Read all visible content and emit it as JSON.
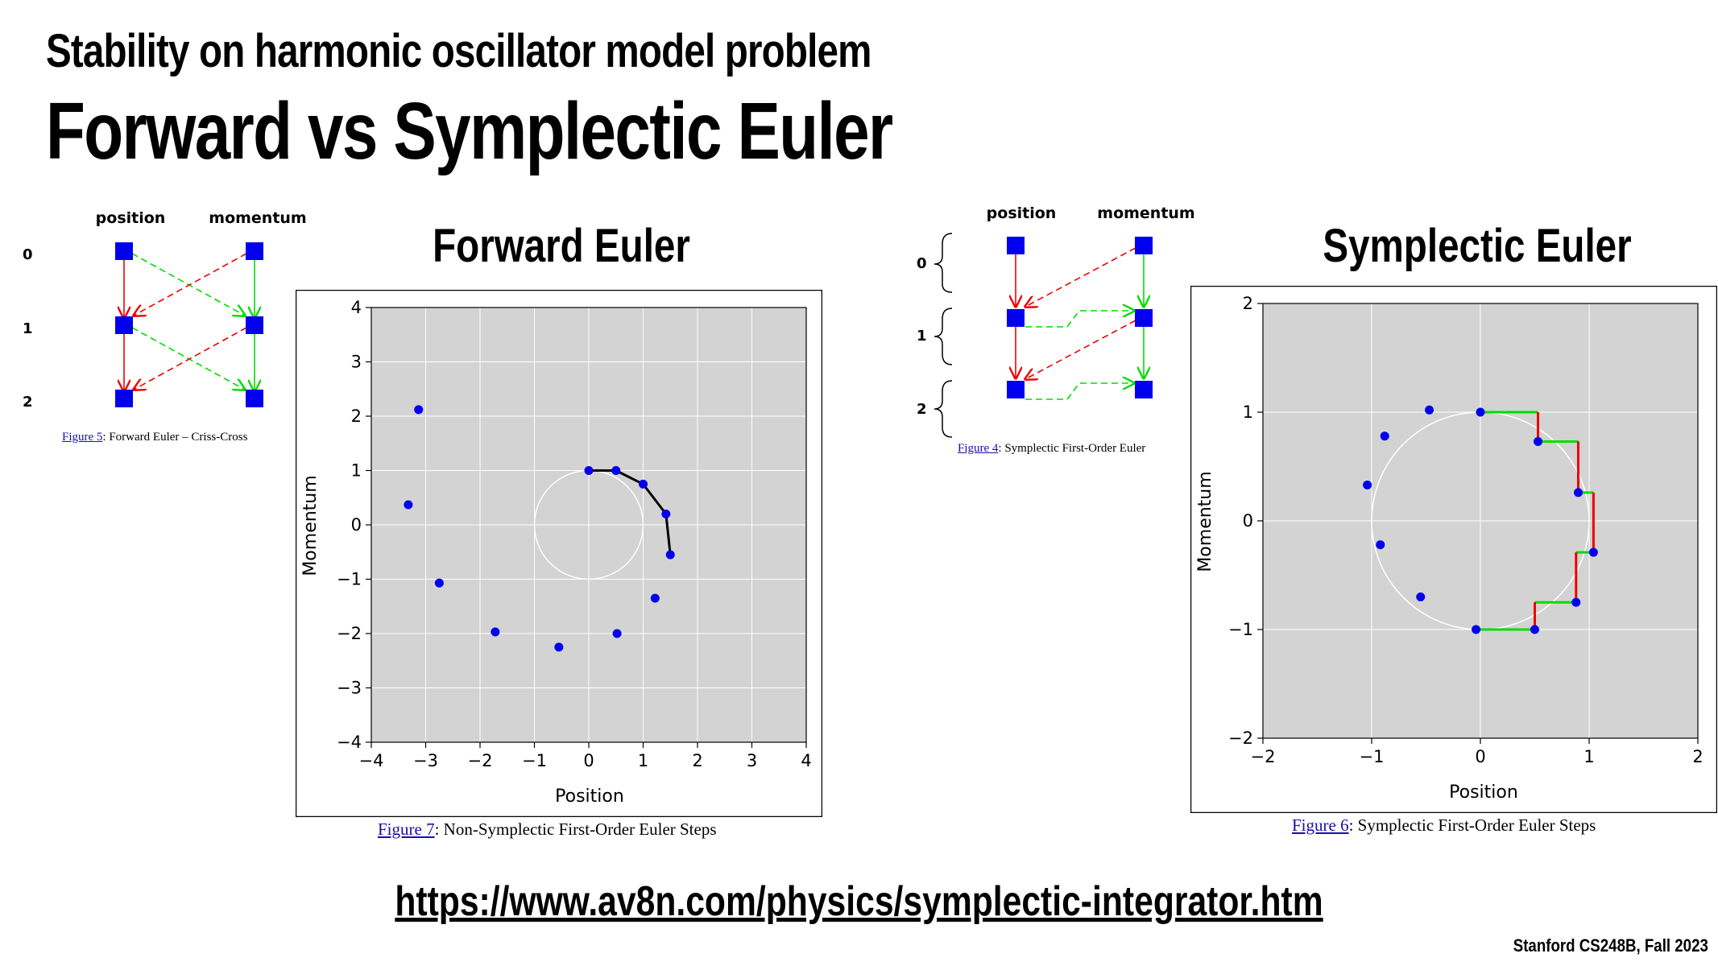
{
  "slide": {
    "subtitle": "Stability on harmonic oscillator model problem",
    "title": "Forward vs Symplectic Euler",
    "url": "https://www.av8n.com/physics/symplectic-integrator.htm",
    "footer": "Stanford CS248B, Fall 2023"
  },
  "colors": {
    "point": "#0000ee",
    "background": "#d3d3d3",
    "grid": "#ffffff",
    "circle": "#ffffff",
    "path": "#000000",
    "position_step": "#ee0000",
    "momentum_step": "#00dd00",
    "link": "#1a0dab"
  },
  "diagrams": [
    {
      "position_label": "position",
      "momentum_label": "momentum",
      "step_labels": [
        "0",
        "1",
        "2"
      ],
      "caption_link": "Figure 5",
      "caption_text": ": Forward Euler – Criss-Cross"
    },
    {
      "position_label": "position",
      "momentum_label": "momentum",
      "step_labels": [
        "0",
        "1",
        "2"
      ],
      "caption_link": "Figure 4",
      "caption_text": ": Symplectic First-Order Euler"
    }
  ],
  "chart_data": [
    {
      "type": "scatter",
      "title": "Forward Euler",
      "xlabel": "Position",
      "ylabel": "Momentum",
      "xlim": [
        -4,
        4
      ],
      "ylim": [
        -4,
        4
      ],
      "xticks": [
        "−4",
        "−3",
        "−2",
        "−1",
        "0",
        "1",
        "2",
        "3",
        "4"
      ],
      "yticks": [
        "4",
        "3",
        "2",
        "1",
        "0",
        "−1",
        "−2",
        "−3",
        "−4"
      ],
      "grid": true,
      "reference_circle_radius": 1,
      "points": [
        {
          "x": 0,
          "y": 1
        },
        {
          "x": 0.5,
          "y": 1
        },
        {
          "x": 1.0,
          "y": 0.75
        },
        {
          "x": 1.42,
          "y": 0.2
        },
        {
          "x": 1.5,
          "y": -0.55
        },
        {
          "x": 1.22,
          "y": -1.35
        },
        {
          "x": 0.52,
          "y": -2.0
        },
        {
          "x": -0.55,
          "y": -2.25
        },
        {
          "x": -1.72,
          "y": -1.97
        },
        {
          "x": -2.75,
          "y": -1.07
        },
        {
          "x": -3.32,
          "y": 0.37
        },
        {
          "x": -3.13,
          "y": 2.12
        }
      ],
      "trajectory_point_count": 5,
      "caption_link": "Figure 7",
      "caption_text": ": Non-Symplectic First-Order Euler Steps"
    },
    {
      "type": "scatter",
      "title": "Symplectic Euler",
      "xlabel": "Position",
      "ylabel": "Momentum",
      "xlim": [
        -2,
        2
      ],
      "ylim": [
        -2,
        2
      ],
      "xticks": [
        "−2",
        "−1",
        "0",
        "1",
        "2"
      ],
      "yticks": [
        "2",
        "1",
        "0",
        "−1",
        "−2"
      ],
      "grid": true,
      "reference_circle_radius": 1,
      "points": [
        {
          "x": 0,
          "y": 1
        },
        {
          "x": 0.53,
          "y": 0.73
        },
        {
          "x": 0.9,
          "y": 0.26
        },
        {
          "x": 1.04,
          "y": -0.29
        },
        {
          "x": 0.88,
          "y": -0.75
        },
        {
          "x": 0.5,
          "y": -1.0
        },
        {
          "x": -0.04,
          "y": -1.0
        },
        {
          "x": -0.55,
          "y": -0.7
        },
        {
          "x": -0.92,
          "y": -0.22
        },
        {
          "x": -1.04,
          "y": 0.33
        },
        {
          "x": -0.88,
          "y": 0.78
        },
        {
          "x": -0.47,
          "y": 1.02
        }
      ],
      "staircase_point_count": 7,
      "caption_link": "Figure 6",
      "caption_text": ": Symplectic First-Order Euler Steps"
    }
  ]
}
